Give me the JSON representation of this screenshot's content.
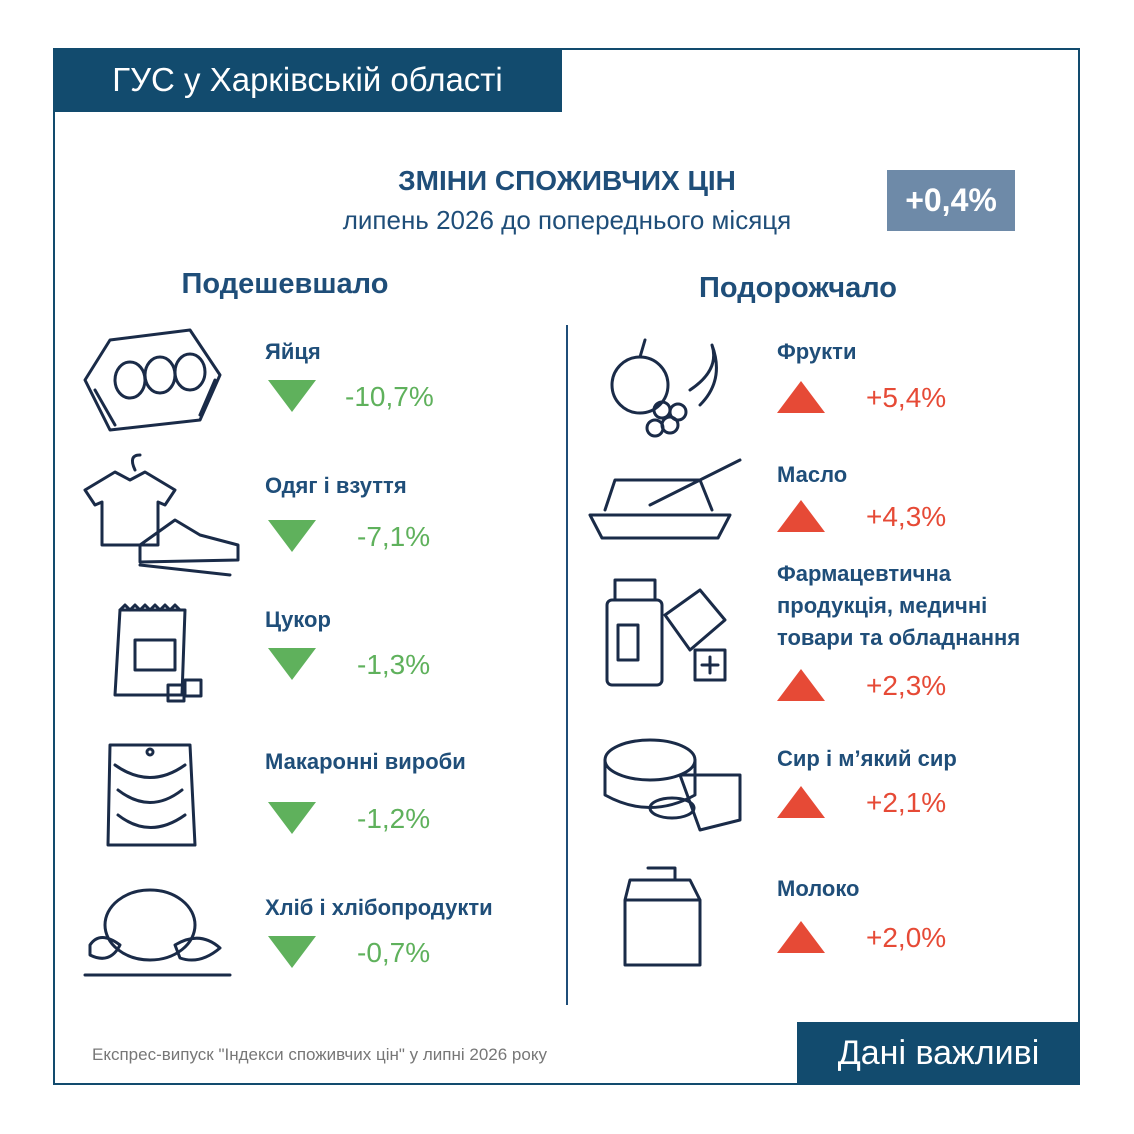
{
  "header": {
    "org": "ГУС у Харківській області"
  },
  "title": "ЗМІНИ СПОЖИВЧИХ ЦІН",
  "subtitle": "липень 2026 до попереднього місяця",
  "total": "+0,4%",
  "cheaper": {
    "heading": "Подешевшало",
    "items": [
      {
        "label": "Яйця",
        "change": "-10,7%"
      },
      {
        "label": "Одяг і взуття",
        "change": "-7,1%"
      },
      {
        "label": "Цукор",
        "change": "-1,3%"
      },
      {
        "label": "Макаронні вироби",
        "change": "-1,2%"
      },
      {
        "label": "Хліб і хлібопродукти",
        "change": "-0,7%"
      }
    ]
  },
  "pricier": {
    "heading": "Подорожчало",
    "items": [
      {
        "label": "Фрукти",
        "change": "+5,4%"
      },
      {
        "label": "Масло",
        "change": "+4,3%"
      },
      {
        "label": "Фармацевтична продукція, медичні товари та обладнання",
        "change": "+2,3%"
      },
      {
        "label": "Сир і м’який сир",
        "change": "+2,1%"
      },
      {
        "label": "Молоко",
        "change": "+2,0%"
      }
    ]
  },
  "footer": {
    "source": "Експрес-випуск \"Індекси споживчих цін\" у липні 2026 року",
    "badge": "Дані важливі"
  }
}
